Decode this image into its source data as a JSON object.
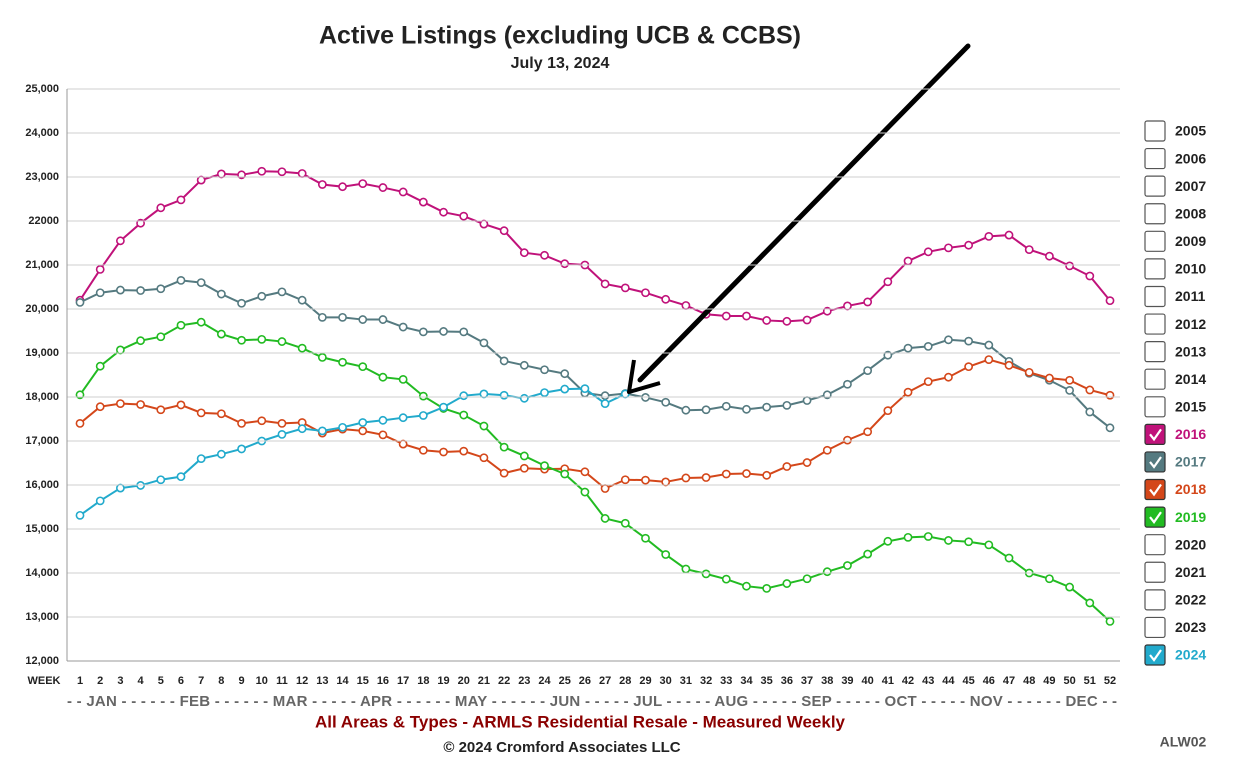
{
  "chart_data": {
    "type": "line",
    "title": "Active Listings (excluding UCB & CCBS)",
    "subtitle": "July 13, 2024",
    "x_label": "WEEK",
    "month_axis": "- - JAN - - - - - - FEB - - - - - - MAR - - - - - APR - - - - - - MAY - - - - - - JUN - - - - - JUL - - - - - AUG - - - - - SEP - - - - - OCT - - - - - NOV - - - - - - DEC - -",
    "footer": "All Areas & Types - ARMLS Residential Resale - Measured Weekly",
    "copyright": "© 2024 Cromford Associates LLC",
    "code": "ALW02",
    "grid": true,
    "legend": "right",
    "categories": [
      "1",
      "2",
      "3",
      "4",
      "5",
      "6",
      "7",
      "8",
      "9",
      "10",
      "11",
      "12",
      "13",
      "14",
      "15",
      "16",
      "17",
      "18",
      "19",
      "20",
      "21",
      "22",
      "23",
      "24",
      "25",
      "26",
      "27",
      "28",
      "29",
      "30",
      "31",
      "32",
      "33",
      "34",
      "35",
      "36",
      "37",
      "38",
      "39",
      "40",
      "41",
      "42",
      "43",
      "44",
      "45",
      "46",
      "47",
      "48",
      "49",
      "50",
      "51",
      "52"
    ],
    "ylim": [
      12000,
      25000
    ],
    "yticks": [
      {
        "value": 12000,
        "label": "12,000"
      },
      {
        "value": 13000,
        "label": "13,000"
      },
      {
        "value": 14000,
        "label": "14,000"
      },
      {
        "value": 15000,
        "label": "15,000"
      },
      {
        "value": 16000,
        "label": "16,000"
      },
      {
        "value": 17000,
        "label": "17,000"
      },
      {
        "value": 18000,
        "label": "18,000"
      },
      {
        "value": 19000,
        "label": "19,000"
      },
      {
        "value": 20000,
        "label": "20,000"
      },
      {
        "value": 21000,
        "label": "21,000"
      },
      {
        "value": 22000,
        "label": "22000"
      },
      {
        "value": 23000,
        "label": "23,000"
      },
      {
        "value": 24000,
        "label": "24,000"
      },
      {
        "value": 25000,
        "label": "25,000"
      }
    ],
    "unchecked_years": [
      "2005",
      "2006",
      "2007",
      "2008",
      "2009",
      "2010",
      "2011",
      "2012",
      "2013",
      "2014",
      "2015",
      "2020",
      "2021",
      "2022",
      "2023"
    ],
    "series": [
      {
        "name": "2016",
        "color": "#c0127a",
        "values": [
          20200,
          20900,
          21550,
          21950,
          22300,
          22480,
          22930,
          23070,
          23050,
          23130,
          23120,
          23080,
          22830,
          22780,
          22850,
          22760,
          22660,
          22430,
          22200,
          22110,
          21930,
          21780,
          21280,
          21220,
          21030,
          21000,
          20570,
          20480,
          20370,
          20220,
          20080,
          19880,
          19840,
          19840,
          19740,
          19720,
          19750,
          19950,
          20070,
          20160,
          20620,
          21090,
          21300,
          21390,
          21450,
          21650,
          21680,
          21350,
          21200,
          20980,
          20750,
          20190
        ]
      },
      {
        "name": "2017",
        "color": "#557a80",
        "values": [
          20150,
          20370,
          20430,
          20420,
          20460,
          20650,
          20600,
          20340,
          20130,
          20290,
          20390,
          20200,
          19810,
          19810,
          19760,
          19760,
          19590,
          19480,
          19490,
          19480,
          19230,
          18820,
          18720,
          18620,
          18530,
          18090,
          18030,
          18080,
          17990,
          17880,
          17700,
          17710,
          17790,
          17720,
          17770,
          17810,
          17920,
          18050,
          18290,
          18600,
          18950,
          19110,
          19150,
          19300,
          19270,
          19180,
          18810,
          18540,
          18380,
          18150,
          17660,
          17300
        ]
      },
      {
        "name": "2018",
        "color": "#d4471a",
        "values": [
          17400,
          17780,
          17850,
          17830,
          17710,
          17820,
          17640,
          17620,
          17400,
          17460,
          17400,
          17420,
          17180,
          17270,
          17230,
          17140,
          16930,
          16790,
          16750,
          16770,
          16620,
          16270,
          16380,
          16360,
          16370,
          16300,
          15920,
          16120,
          16110,
          16070,
          16160,
          16170,
          16250,
          16260,
          16220,
          16420,
          16510,
          16790,
          17020,
          17210,
          17690,
          18110,
          18350,
          18450,
          18690,
          18850,
          18720,
          18560,
          18430,
          18380,
          18160,
          18040
        ]
      },
      {
        "name": "2019",
        "color": "#22bb22",
        "values": [
          18050,
          18700,
          19070,
          19280,
          19370,
          19630,
          19700,
          19430,
          19290,
          19310,
          19260,
          19110,
          18900,
          18790,
          18690,
          18450,
          18400,
          18020,
          17740,
          17590,
          17340,
          16860,
          16660,
          16440,
          16250,
          15840,
          15240,
          15130,
          14790,
          14420,
          14090,
          13980,
          13860,
          13700,
          13650,
          13760,
          13870,
          14030,
          14170,
          14430,
          14720,
          14810,
          14830,
          14740,
          14710,
          14640,
          14340,
          14000,
          13870,
          13680,
          13320,
          12900
        ]
      },
      {
        "name": "2024",
        "color": "#22aacc",
        "values": [
          15310,
          15640,
          15930,
          15990,
          16120,
          16190,
          16600,
          16700,
          16820,
          17000,
          17150,
          17280,
          17230,
          17310,
          17420,
          17470,
          17530,
          17580,
          17770,
          18030,
          18070,
          18040,
          17970,
          18100,
          18180,
          18190,
          17850,
          18070,
          null,
          null,
          null,
          null,
          null,
          null,
          null,
          null,
          null,
          null,
          null,
          null,
          null,
          null,
          null,
          null,
          null,
          null,
          null,
          null,
          null,
          null,
          null,
          null
        ]
      }
    ]
  }
}
